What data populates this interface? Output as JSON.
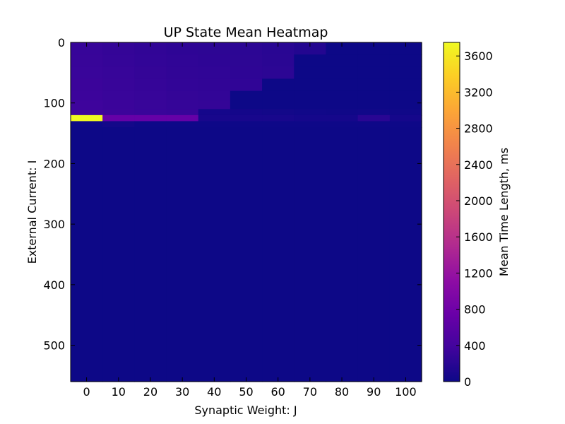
{
  "chart_data": {
    "type": "heatmap",
    "title": "UP State Mean Heatmap",
    "xlabel": "Synaptic Weight: J",
    "ylabel": "External Current: I",
    "colorbar_label": "Mean Time Length, ms",
    "colormap": "plasma",
    "x_ticks": [
      0,
      10,
      20,
      30,
      40,
      50,
      60,
      70,
      80,
      90,
      100
    ],
    "y_ticks": [
      0,
      100,
      200,
      300,
      400,
      500
    ],
    "colorbar_ticks": [
      0,
      400,
      800,
      1200,
      1600,
      2000,
      2400,
      2800,
      3200,
      3600
    ],
    "xlim": [
      -5,
      105
    ],
    "ylim": [
      560,
      0
    ],
    "vmin": 0,
    "vmax": 3750,
    "x_centers": [
      0,
      10,
      20,
      30,
      40,
      50,
      60,
      70,
      80,
      90,
      100
    ],
    "y_bins": [
      {
        "y0": 0,
        "y1": 20,
        "values": [
          300,
          280,
          260,
          240,
          230,
          220,
          200,
          160,
          0,
          0,
          0
        ]
      },
      {
        "y0": 20,
        "y1": 40,
        "values": [
          310,
          290,
          270,
          250,
          240,
          230,
          210,
          0,
          0,
          0,
          0
        ]
      },
      {
        "y0": 40,
        "y1": 60,
        "values": [
          320,
          300,
          280,
          260,
          250,
          240,
          220,
          0,
          0,
          0,
          0
        ]
      },
      {
        "y0": 60,
        "y1": 80,
        "values": [
          330,
          310,
          290,
          270,
          260,
          250,
          0,
          0,
          0,
          0,
          0
        ]
      },
      {
        "y0": 80,
        "y1": 95,
        "values": [
          340,
          320,
          300,
          280,
          270,
          0,
          0,
          0,
          0,
          0,
          0
        ]
      },
      {
        "y0": 95,
        "y1": 110,
        "values": [
          350,
          330,
          310,
          290,
          280,
          0,
          0,
          0,
          0,
          0,
          0
        ]
      },
      {
        "y0": 110,
        "y1": 120,
        "values": [
          360,
          340,
          320,
          300,
          60,
          50,
          40,
          30,
          20,
          30,
          20
        ]
      },
      {
        "y0": 120,
        "y1": 130,
        "values": [
          3750,
          700,
          700,
          700,
          80,
          80,
          80,
          60,
          60,
          200,
          60
        ]
      },
      {
        "y0": 130,
        "y1": 140,
        "values": [
          10,
          40,
          10,
          10,
          10,
          10,
          10,
          10,
          10,
          10,
          10
        ]
      },
      {
        "y0": 140,
        "y1": 560,
        "values": [
          0,
          0,
          0,
          0,
          0,
          0,
          0,
          0,
          0,
          0,
          0
        ]
      }
    ]
  }
}
